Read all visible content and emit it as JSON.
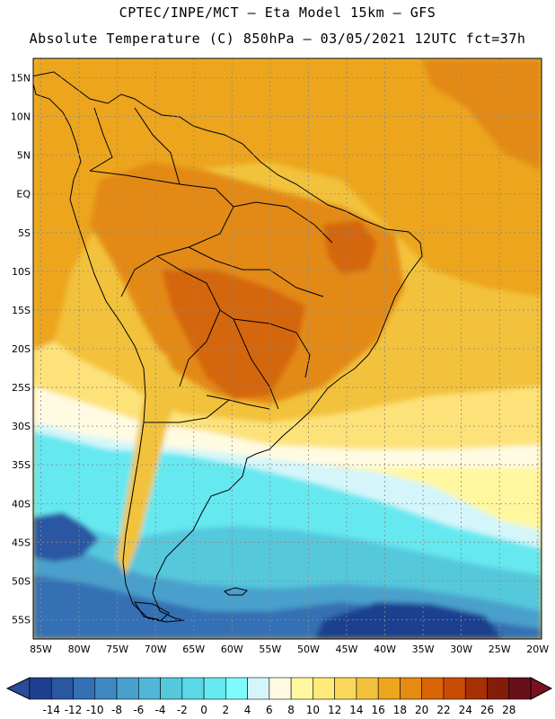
{
  "header": {
    "line1": "CPTEC/INPE/MCT –  Eta Model 15km – GFS",
    "line2": "Absolute Temperature (C) 850hPa – 03/05/2021 12UTC fct=37h"
  },
  "axes": {
    "lat_labels": [
      "15N",
      "10N",
      "5N",
      "EQ",
      "5S",
      "10S",
      "15S",
      "20S",
      "25S",
      "30S",
      "35S",
      "40S",
      "45S",
      "50S",
      "55S"
    ],
    "lon_labels": [
      "85W",
      "80W",
      "75W",
      "70W",
      "65W",
      "60W",
      "55W",
      "50W",
      "45W",
      "40W",
      "35W",
      "30W",
      "25W",
      "20W"
    ]
  },
  "legend": {
    "units": "°C",
    "labels": [
      "-14",
      "-12",
      "-10",
      "-8",
      "-6",
      "-4",
      "-2",
      "0",
      "2",
      "4",
      "6",
      "8",
      "10",
      "12",
      "14",
      "16",
      "18",
      "20",
      "22",
      "24",
      "26",
      "28"
    ],
    "low_color": "#2a4a9a",
    "high_color": "#7a1020",
    "colors": [
      "#1f3f8e",
      "#2a56a2",
      "#3470b4",
      "#3f88c2",
      "#4aa0cc",
      "#52b6d6",
      "#55c8dc",
      "#5ad8e6",
      "#66e8f0",
      "#7efcfc",
      "#d4f6fa",
      "#fffbe2",
      "#fff7a0",
      "#fdea7a",
      "#f9d85c",
      "#f2c23c",
      "#eca51c",
      "#e58a12",
      "#da6408",
      "#c84c06",
      "#a83004",
      "#841c0c",
      "#68101a"
    ]
  },
  "map": {
    "region": "South America",
    "field": "Absolute Temperature 850hPa",
    "colors": {
      "warm_max": "#d4660c",
      "warm": "#e38a14",
      "warm_mid": "#eca51c",
      "mild": "#f2c23c",
      "cool_yellow": "#fde27a",
      "pale": "#fff7a0",
      "cream": "#fffbe2",
      "ice": "#d4f6fa",
      "cyan": "#66e8f0",
      "cyan_light": "#7efcfc",
      "teal": "#55c8dc",
      "blue1": "#4aa0cc",
      "blue2": "#3f88c2",
      "blue3": "#3470b4",
      "blue4": "#2a56a2",
      "blue5": "#1f3f8e",
      "coast": "#000000",
      "grid": "#8a8a8a"
    }
  }
}
